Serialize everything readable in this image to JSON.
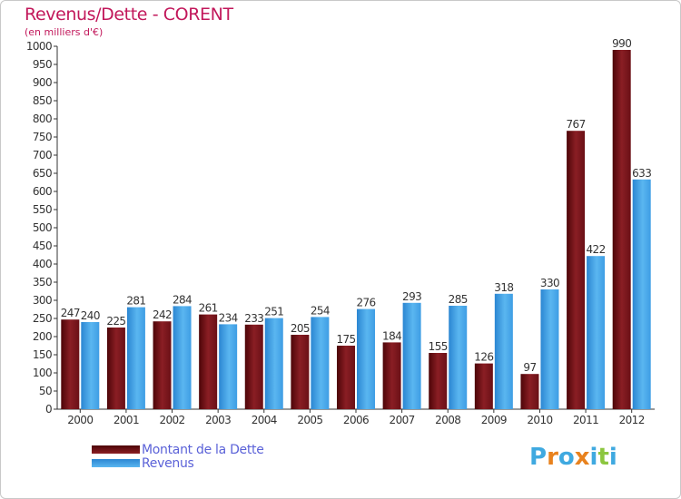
{
  "chart_data": {
    "type": "bar",
    "title": "Revenus/Dette - CORENT",
    "subtitle": "(en milliers d'€)",
    "categories": [
      "2000",
      "2001",
      "2002",
      "2003",
      "2004",
      "2005",
      "2006",
      "2007",
      "2008",
      "2009",
      "2010",
      "2011",
      "2012"
    ],
    "series": [
      {
        "name": "Montant de la Dette",
        "color": "#7a1a1e",
        "values": [
          247,
          225,
          242,
          261,
          233,
          205,
          175,
          184,
          155,
          126,
          97,
          767,
          990
        ]
      },
      {
        "name": "Revenus",
        "color": "#3d9ee6",
        "values": [
          240,
          281,
          284,
          234,
          251,
          254,
          276,
          293,
          285,
          318,
          330,
          422,
          633
        ]
      }
    ],
    "ylim": [
      0,
      1000
    ],
    "ytick_step": 50,
    "grid": false,
    "legend_position": "bottom-left"
  },
  "logo": {
    "text": "Proxiti",
    "letters": [
      "P",
      "r",
      "o",
      "x",
      "i",
      "t",
      "i"
    ],
    "colors": [
      "#3fa9e0",
      "#e8821e",
      "#3fa9e0",
      "#e8821e",
      "#3fa9e0",
      "#8cc63f",
      "#3fa9e0"
    ]
  }
}
